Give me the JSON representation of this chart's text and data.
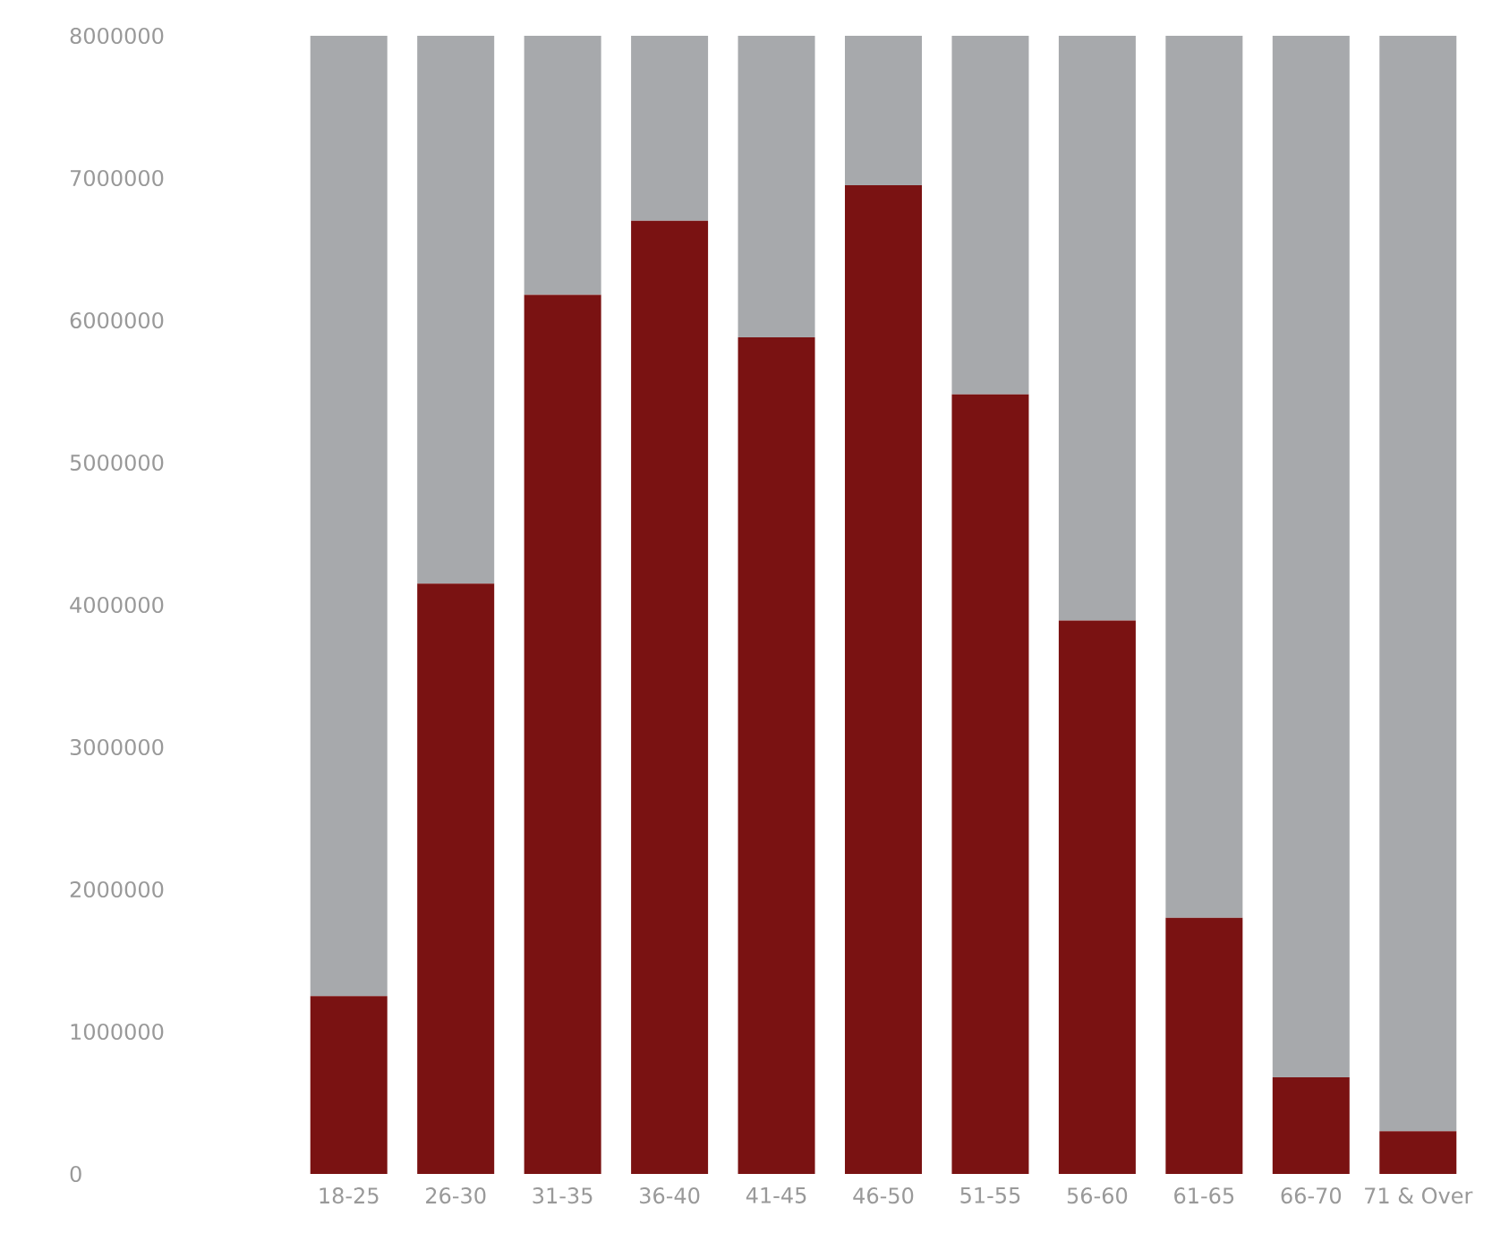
{
  "chart_data": {
    "type": "bar",
    "stacked": true,
    "categories": [
      "18-25",
      "26-30",
      "31-35",
      "36-40",
      "41-45",
      "46-50",
      "51-55",
      "56-60",
      "61-65",
      "66-70",
      "71 & Over"
    ],
    "series": [
      {
        "color": "#7a1212",
        "values": [
          1250000,
          4150000,
          6180000,
          6700000,
          5880000,
          6950000,
          5480000,
          3890000,
          1800000,
          680000,
          300000
        ]
      },
      {
        "color": "#a7a9ac",
        "values": [
          6750000,
          3850000,
          1820000,
          1300000,
          2120000,
          1050000,
          2520000,
          4110000,
          6200000,
          7320000,
          7700000
        ]
      }
    ],
    "ylim": [
      0,
      8000000
    ],
    "yticks": [
      0,
      1000000,
      2000000,
      3000000,
      4000000,
      5000000,
      6000000,
      7000000,
      8000000
    ],
    "grid": false
  }
}
